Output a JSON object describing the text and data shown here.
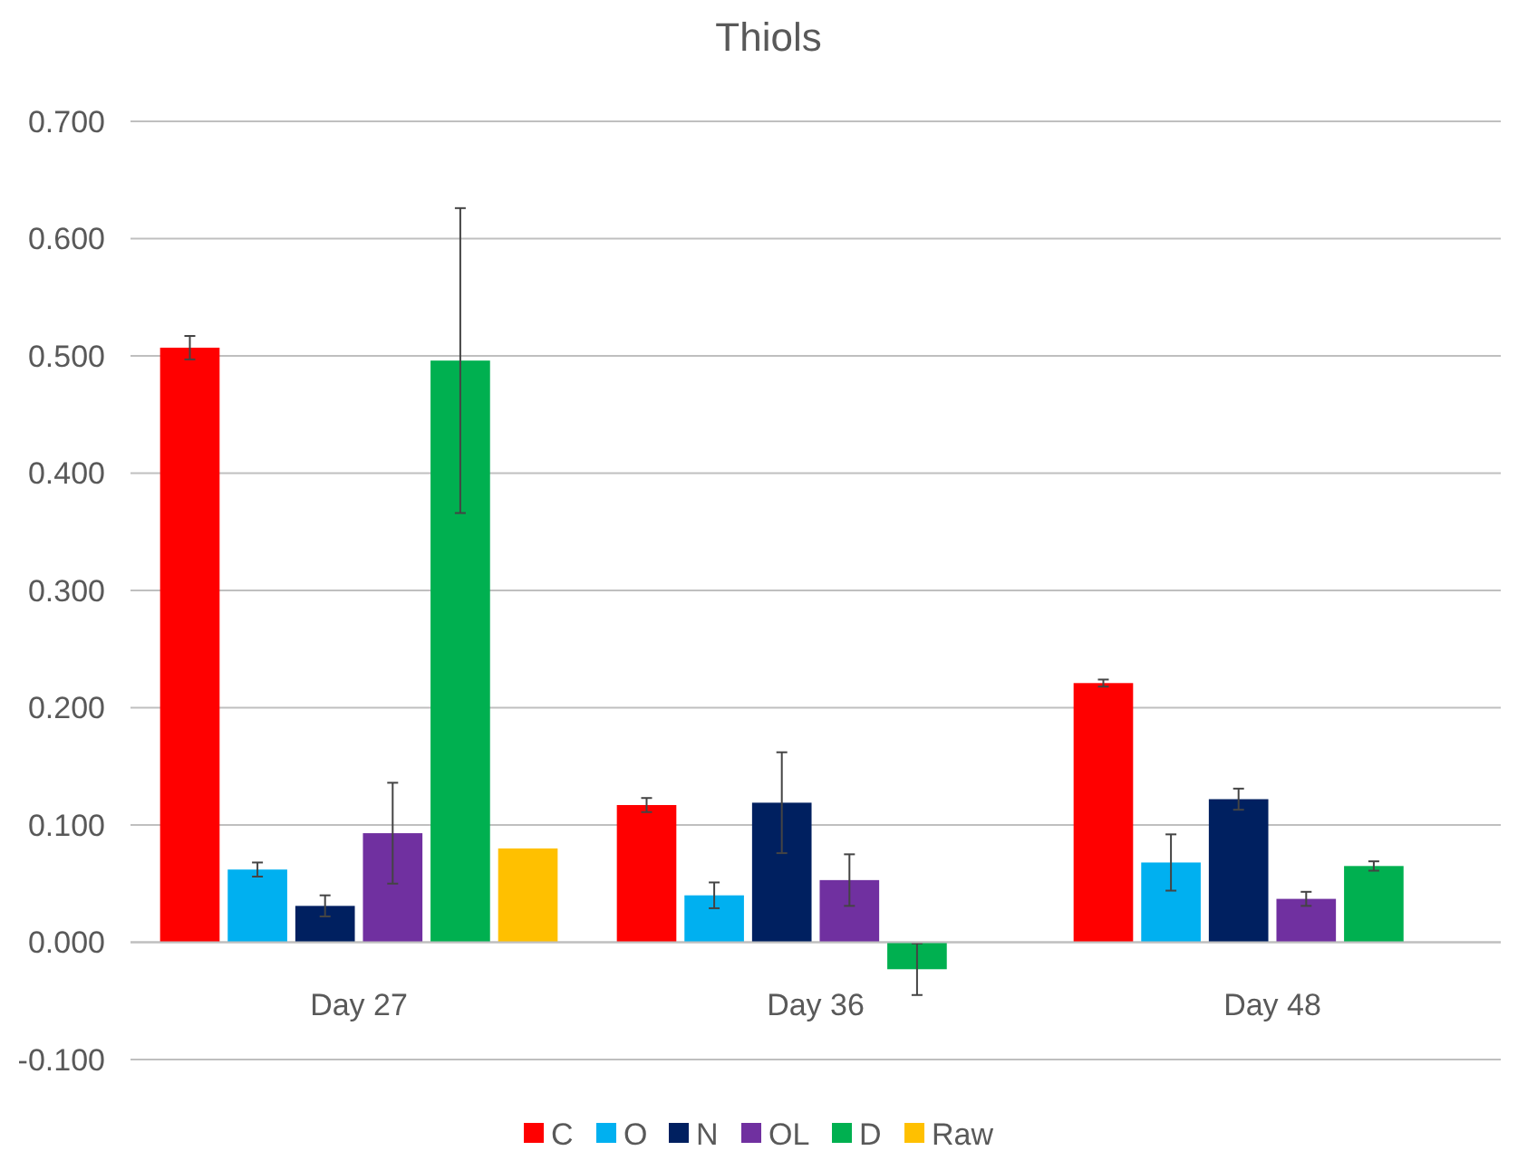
{
  "chart_data": {
    "type": "bar",
    "title": "Thiols",
    "categories": [
      "Day 27",
      "Day 36",
      "Day 48"
    ],
    "series": [
      {
        "name": "C",
        "color": "#ff0000",
        "values": [
          0.507,
          0.117,
          0.221
        ],
        "errors": [
          0.01,
          0.006,
          0.003
        ]
      },
      {
        "name": "O",
        "color": "#00b0f0",
        "values": [
          0.062,
          0.04,
          0.068
        ],
        "errors": [
          0.006,
          0.011,
          0.024
        ]
      },
      {
        "name": "N",
        "color": "#002060",
        "values": [
          0.031,
          0.119,
          0.122
        ],
        "errors": [
          0.009,
          0.043,
          0.009
        ]
      },
      {
        "name": "OL",
        "color": "#7030a0",
        "values": [
          0.093,
          0.053,
          0.037
        ],
        "errors": [
          0.043,
          0.022,
          0.006
        ]
      },
      {
        "name": "D",
        "color": "#00b050",
        "values": [
          0.496,
          -0.023,
          0.065
        ],
        "errors": [
          0.13,
          0.022,
          0.004
        ]
      },
      {
        "name": "Raw",
        "color": "#ffc000",
        "values": [
          0.08,
          null,
          null
        ],
        "errors": [
          null,
          null,
          null
        ]
      }
    ],
    "ylim": [
      -0.1,
      0.7
    ],
    "yticks": [
      {
        "value": -0.1,
        "label": "-0.100"
      },
      {
        "value": 0,
        "label": "0.000"
      },
      {
        "value": 0.1,
        "label": "0.100"
      },
      {
        "value": 0.2,
        "label": "0.200"
      },
      {
        "value": 0.3,
        "label": "0.300"
      },
      {
        "value": 0.4,
        "label": "0.400"
      },
      {
        "value": 0.5,
        "label": "0.500"
      },
      {
        "value": 0.6,
        "label": "0.600"
      },
      {
        "value": 0.7,
        "label": "0.700"
      }
    ],
    "grid": "y",
    "legend": "bottom"
  }
}
